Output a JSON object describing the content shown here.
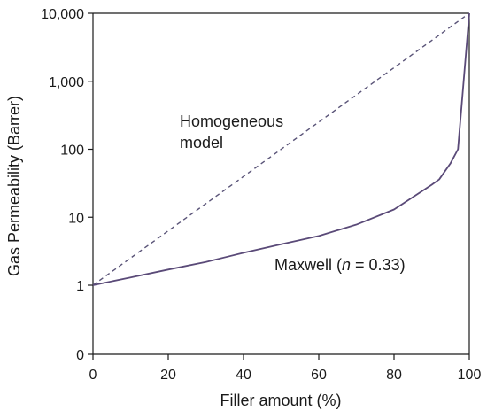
{
  "chart_data": {
    "type": "line",
    "xlabel": "Filler amount (%)",
    "ylabel": "Gas Permeability (Barrer)",
    "xlim": [
      0,
      100
    ],
    "ylim_log": [
      1,
      10000
    ],
    "y_scale": "log",
    "grid": false,
    "x_ticks": [
      "0",
      "20",
      "40",
      "60",
      "80",
      "100"
    ],
    "y_ticks": [
      {
        "label": "10,000",
        "value": 10000
      },
      {
        "label": "1,000",
        "value": 1000
      },
      {
        "label": "100",
        "value": 100
      },
      {
        "label": "10",
        "value": 10
      },
      {
        "label": "1",
        "value": 1
      },
      {
        "label": "0",
        "value": null
      }
    ],
    "series": [
      {
        "name": "Homogeneous model",
        "style": "dashed",
        "color": "#5a5478",
        "x": [
          0,
          100
        ],
        "y": [
          1,
          10000
        ]
      },
      {
        "name": "Maxwell (n = 0.33)",
        "style": "solid",
        "color": "#5a4a78",
        "x": [
          0,
          10,
          20,
          30,
          40,
          50,
          60,
          70,
          80,
          90,
          92,
          95,
          97,
          100
        ],
        "y": [
          1,
          1.3,
          1.7,
          2.2,
          3.0,
          4.0,
          5.3,
          7.8,
          13,
          30,
          36,
          62,
          100,
          10000
        ]
      }
    ],
    "annotations": [
      {
        "line1": "Homogeneous",
        "line2": "model"
      },
      {
        "prefix": "Maxwell (",
        "italic": "n",
        "suffix": " = 0.33)"
      }
    ]
  }
}
